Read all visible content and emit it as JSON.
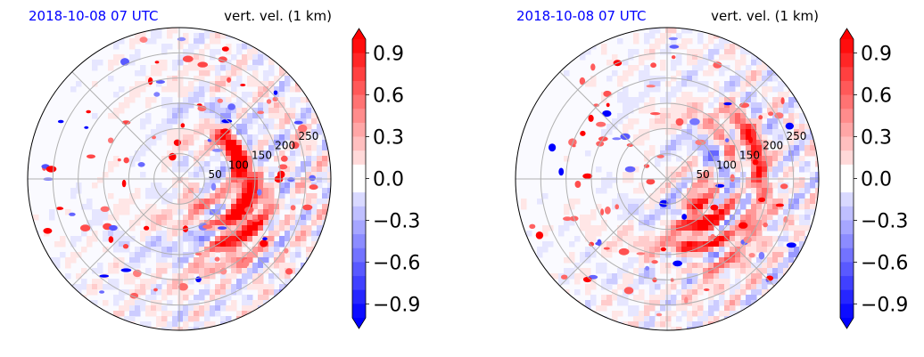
{
  "colors": {
    "timestamp": "#0000ff",
    "positive": "#ff0000",
    "negative": "#0000ff",
    "neutral": "#ffffff"
  },
  "chart_data": [
    {
      "type": "heatmap",
      "projection": "polar",
      "timestamp": "2018-10-08 07 UTC",
      "title": "vert. vel. (1 km)",
      "radial_ticks": [
        "50",
        "100",
        "150",
        "200",
        "250"
      ],
      "radial_tick_values": [
        50,
        100,
        150,
        200,
        250
      ],
      "rmax": 300,
      "grid": true,
      "colorbar": {
        "ticks": [
          "0.9",
          "0.6",
          "0.3",
          "0.0",
          "−0.3",
          "−0.6",
          "−0.9"
        ],
        "tick_values": [
          0.9,
          0.6,
          0.3,
          0.0,
          -0.3,
          -0.6,
          -0.9
        ],
        "range": [
          -1.0,
          1.0
        ],
        "extend": "both",
        "colormap": "bwr"
      }
    },
    {
      "type": "heatmap",
      "projection": "polar",
      "timestamp": "2018-10-08 07 UTC",
      "title": "vert. vel. (1 km)",
      "radial_ticks": [
        "50",
        "100",
        "150",
        "200",
        "250"
      ],
      "radial_tick_values": [
        50,
        100,
        150,
        200,
        250
      ],
      "rmax": 300,
      "grid": true,
      "colorbar": {
        "ticks": [
          "0.9",
          "0.6",
          "0.3",
          "0.0",
          "−0.3",
          "−0.6",
          "−0.9"
        ],
        "tick_values": [
          0.9,
          0.6,
          0.3,
          0.0,
          -0.3,
          -0.6,
          -0.9
        ],
        "range": [
          -1.0,
          1.0
        ],
        "extend": "both",
        "colormap": "bwr"
      }
    }
  ]
}
